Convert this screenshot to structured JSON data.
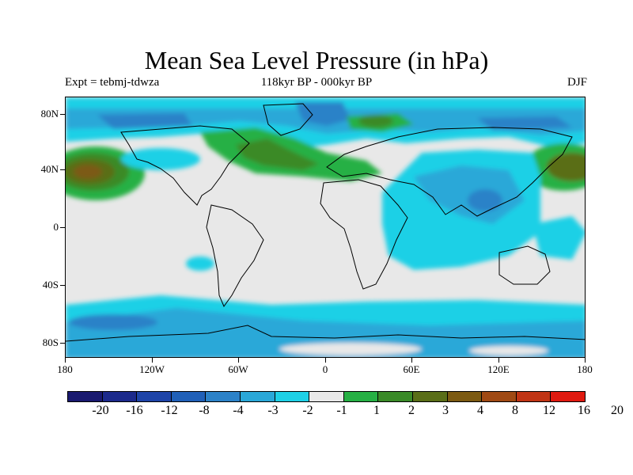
{
  "title": "Mean Sea Level Pressure (in hPa)",
  "subtitle_left": "Expt = tebmj-tdwza",
  "subtitle_center": "118kyr BP - 000kyr BP",
  "subtitle_right": "DJF",
  "lat_labels": [
    "80N",
    "40N",
    "0",
    "40S",
    "80S"
  ],
  "lon_labels": [
    "180",
    "120W",
    "60W",
    "0",
    "60E",
    "120E",
    "180"
  ],
  "colorbar": {
    "labels": [
      "-20",
      "-16",
      "-12",
      "-8",
      "-4",
      "-3",
      "-2",
      "-1",
      "1",
      "2",
      "3",
      "4",
      "8",
      "12",
      "16",
      "20"
    ],
    "colors": [
      "#1a1a70",
      "#1c2a8c",
      "#1e44a8",
      "#2060b8",
      "#2c82c8",
      "#2aa8d8",
      "#1ed0e6",
      "#e8e8e8",
      "#26b044",
      "#3a8a28",
      "#5a6e18",
      "#7c5a12",
      "#a04a14",
      "#c03414",
      "#e01a10"
    ]
  },
  "chart_data": {
    "type": "heatmap",
    "title": "Mean Sea Level Pressure (in hPa)",
    "subtitle": "118kyr BP - 000kyr BP",
    "experiment": "Expt = tebmj-tdwza",
    "season": "DJF",
    "x_range": [
      -180,
      180
    ],
    "y_range": [
      -90,
      90
    ],
    "contour_levels": [
      -20,
      -16,
      -12,
      -8,
      -4,
      -3,
      -2,
      -1,
      1,
      2,
      3,
      4,
      8,
      12,
      16,
      20
    ]
  }
}
